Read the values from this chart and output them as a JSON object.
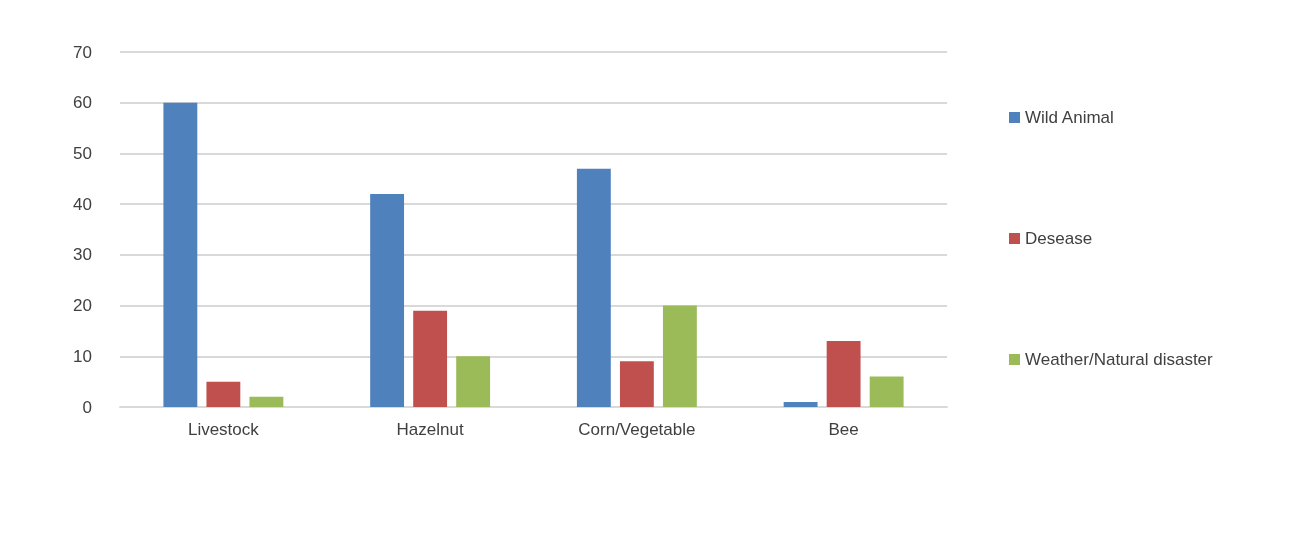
{
  "chart_data": {
    "type": "bar",
    "categories": [
      "Livestock",
      "Hazelnut",
      "Corn/Vegetable",
      "Bee"
    ],
    "series": [
      {
        "name": "Wild Animal",
        "color": "#4f81bd",
        "values": [
          60,
          42,
          47,
          1
        ]
      },
      {
        "name": "Desease",
        "color": "#c0504d",
        "values": [
          5,
          19,
          9,
          13
        ]
      },
      {
        "name": "Weather/Natural disaster",
        "color": "#9bbb59",
        "values": [
          2,
          10,
          20,
          6
        ]
      }
    ],
    "ylim": [
      0,
      70
    ],
    "yticks": [
      0,
      10,
      20,
      30,
      40,
      50,
      60,
      70
    ],
    "grid": "y",
    "legend": "right"
  }
}
